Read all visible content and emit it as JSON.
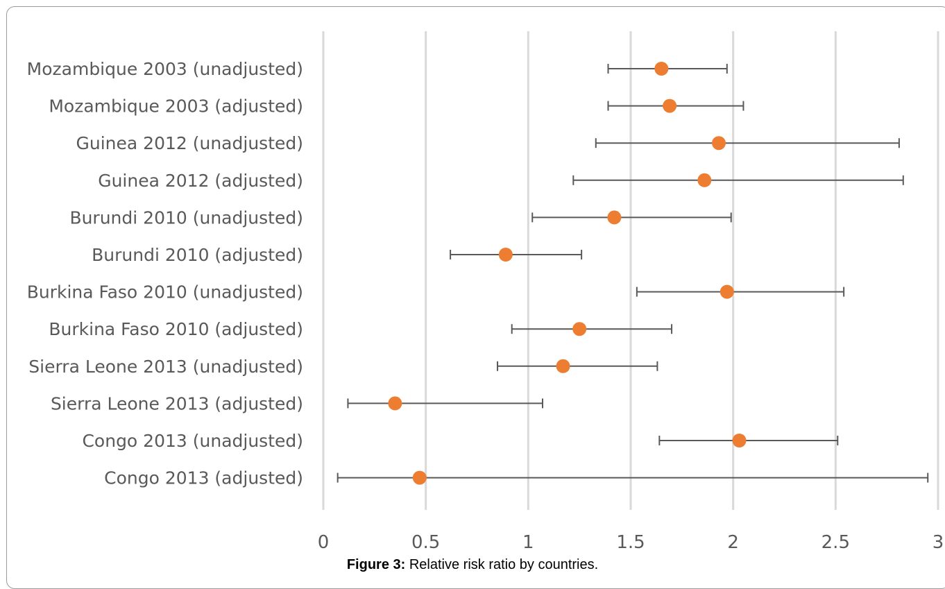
{
  "caption": {
    "label": "Figure 3:",
    "text": "Relative risk ratio by countries."
  },
  "chart_data": {
    "type": "scatter",
    "title": "",
    "xlabel": "",
    "ylabel": "",
    "xlim": [
      0,
      3
    ],
    "xticks": [
      "0",
      "0.5",
      "1",
      "1.5",
      "2",
      "2.5",
      "3"
    ],
    "grid": true,
    "legend": "none",
    "marker_color": "#ED7D31",
    "errorbar_color": "#595959",
    "gridline_color": "#D9D9D9",
    "categories": [
      "Mozambique 2003 (unadjusted)",
      "Mozambique 2003 (adjusted)",
      "Guinea 2012 (unadjusted)",
      "Guinea 2012 (adjusted)",
      "Burundi 2010 (unadjusted)",
      "Burundi 2010 (adjusted)",
      "Burkina Faso 2010 (unadjusted)",
      "Burkina Faso 2010 (adjusted)",
      "Sierra Leone 2013 (unadjusted)",
      "Sierra Leone 2013 (adjusted)",
      "Congo 2013 (unadjusted)",
      "Congo 2013 (adjusted)"
    ],
    "values": [
      1.65,
      1.69,
      1.93,
      1.86,
      1.42,
      0.89,
      1.97,
      1.25,
      1.17,
      0.35,
      2.03,
      0.47
    ],
    "lower": [
      1.39,
      1.39,
      1.33,
      1.22,
      1.02,
      0.62,
      1.53,
      0.92,
      0.85,
      0.12,
      1.64,
      0.07
    ],
    "upper": [
      1.97,
      2.05,
      2.81,
      2.83,
      1.99,
      1.26,
      2.54,
      1.7,
      1.63,
      1.07,
      2.51,
      2.95
    ]
  }
}
